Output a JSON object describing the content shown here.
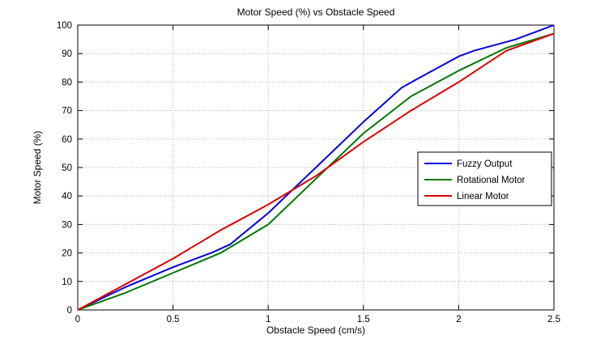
{
  "chart_data": {
    "type": "line",
    "title": "Motor Speed (%) vs Obstacle Speed",
    "xlabel": "Obstacle Speed (cm/s)",
    "ylabel": "Motor Speed (%)",
    "xlim": [
      0,
      2.5
    ],
    "ylim": [
      0,
      100
    ],
    "xticks": [
      0,
      0.5,
      1,
      1.5,
      2,
      2.5
    ],
    "xtick_labels": [
      "0",
      "0.5",
      "1",
      "1.5",
      "2",
      "2.5"
    ],
    "yticks": [
      0,
      10,
      20,
      30,
      40,
      50,
      60,
      70,
      80,
      90,
      100
    ],
    "grid": true,
    "grid_style": "dotted",
    "legend_position": "middle-right",
    "axis_color": "#000000",
    "grid_color": "#b0b0b0",
    "series": [
      {
        "name": "Fuzzy Output",
        "color": "#0000dd",
        "x": [
          0,
          0.25,
          0.5,
          0.7,
          0.8,
          1.0,
          1.25,
          1.5,
          1.7,
          1.78,
          2.0,
          2.08,
          2.3,
          2.5
        ],
        "y": [
          0,
          8,
          15,
          20,
          23,
          34,
          50,
          66,
          78,
          81,
          89,
          91,
          95,
          100
        ]
      },
      {
        "name": "Rotational Motor",
        "color": "#007700",
        "x": [
          0,
          0.25,
          0.5,
          0.75,
          1.0,
          1.25,
          1.5,
          1.75,
          2.0,
          2.25,
          2.5
        ],
        "y": [
          0,
          6,
          13,
          20,
          30,
          46,
          62,
          75,
          84,
          92,
          97
        ]
      },
      {
        "name": "Linear Motor",
        "color": "#dd0000",
        "x": [
          0,
          0.25,
          0.5,
          0.75,
          1.0,
          1.25,
          1.5,
          1.75,
          2.0,
          2.25,
          2.5
        ],
        "y": [
          0,
          9,
          18,
          28,
          37,
          47,
          59,
          70,
          80,
          91,
          97
        ]
      }
    ]
  }
}
